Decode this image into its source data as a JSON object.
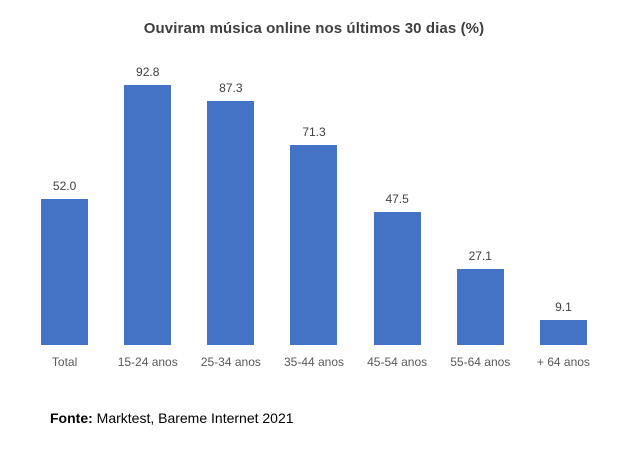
{
  "chart": {
    "source_prefix": "Fonte:",
    "source_rest": " Marktest, Bareme Internet 2021"
  },
  "chart_data": {
    "type": "bar",
    "title": "Ouviram música online nos últimos 30 dias (%)",
    "categories": [
      "Total",
      "15-24 anos",
      "25-34 anos",
      "35-44 anos",
      "45-54 anos",
      "55-64 anos",
      "+ 64 anos"
    ],
    "values": [
      52.0,
      92.8,
      87.3,
      71.3,
      47.5,
      27.1,
      9.1
    ],
    "value_labels": [
      "52.0",
      "92.8",
      "87.3",
      "71.3",
      "47.5",
      "27.1",
      "9.1"
    ],
    "xlabel": "",
    "ylabel": "",
    "ylim": [
      0,
      100
    ],
    "grid": false,
    "legend": false,
    "source": "Fonte: Marktest, Bareme Internet 2021"
  },
  "colors": {
    "bar": "#4472C4",
    "title_text": "#404040",
    "value_label_text": "#404040",
    "category_label_text": "#595959",
    "source_text": "#000000",
    "background": "#ffffff"
  }
}
